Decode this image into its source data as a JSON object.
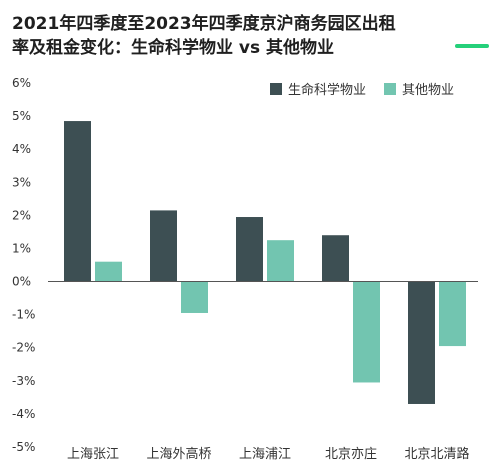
{
  "title_line1": "2021年四季度至2023年四季度京沪商务园区出租",
  "title_line2": "率及租金变化：生命科学物业 vs 其他物业",
  "chart_data": {
    "type": "bar",
    "title": "2021年四季度至2023年四季度京沪商务园区出租率及租金变化：生命科学物业 vs 其他物业",
    "xlabel": "",
    "ylabel": "",
    "categories": [
      "上海张江",
      "上海外高桥",
      "上海浦江",
      "北京亦庄",
      "北京北清路"
    ],
    "series": [
      {
        "name": "生命科学物业",
        "color": "#3d4f53",
        "values": [
          4.85,
          2.15,
          1.95,
          1.4,
          -3.7
        ]
      },
      {
        "name": "其他物业",
        "color": "#72c5b0",
        "values": [
          0.6,
          -0.95,
          1.25,
          -3.05,
          -1.95
        ]
      }
    ],
    "ylim": [
      -5,
      6
    ],
    "yticks": [
      6,
      5,
      4,
      3,
      2,
      1,
      0,
      -1,
      -2,
      -3,
      -4,
      -5
    ],
    "ytick_labels": [
      "6%",
      "5%",
      "4%",
      "3%",
      "2%",
      "1%",
      "0%",
      "-1%",
      "-2%",
      "-3%",
      "-4%",
      "-5%"
    ],
    "grid": false,
    "legend_position": "top-right"
  }
}
